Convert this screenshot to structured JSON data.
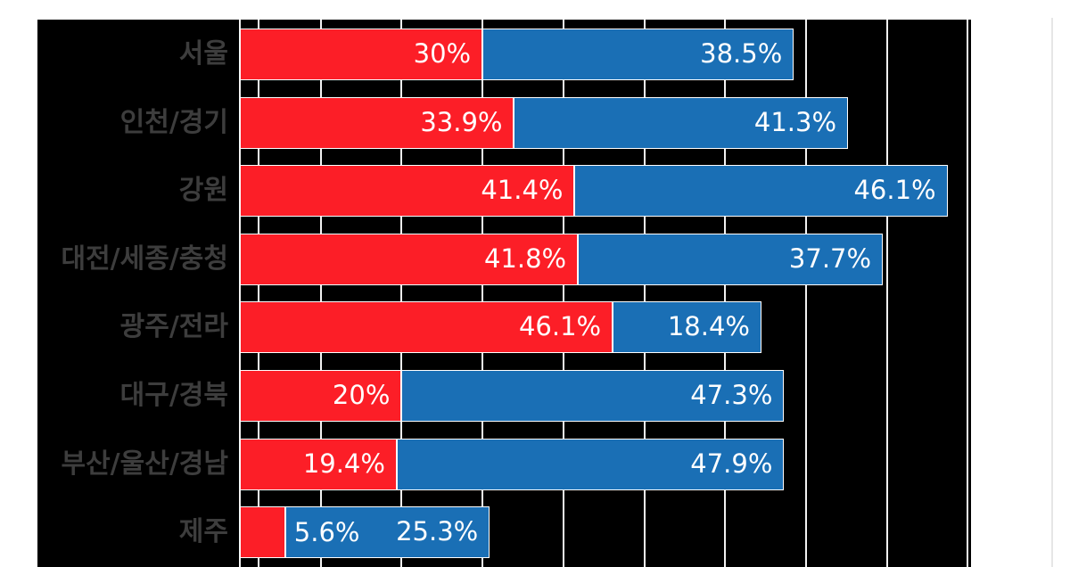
{
  "chart_data": {
    "type": "bar",
    "orientation": "horizontal",
    "stacked": true,
    "title": "",
    "xlabel": "",
    "ylabel": "",
    "legend": "none",
    "grid": true,
    "xlim": [
      0,
      90.4
    ],
    "gridlines_pct": [
      0,
      2.3,
      10,
      20,
      30,
      40,
      50,
      60,
      70,
      80,
      90
    ],
    "categories": [
      "서울",
      "인천/경기",
      "강원",
      "대전/세종/충청",
      "광주/전라",
      "대구/경북",
      "부산/울산/경남",
      "제주"
    ],
    "series": [
      {
        "name": "red-series",
        "color": "#fc1e27",
        "values": [
          30,
          33.9,
          41.4,
          41.8,
          46.1,
          20,
          19.4,
          5.6
        ],
        "labels": [
          "30%",
          "33.9%",
          "41.4%",
          "41.8%",
          "46.1%",
          "20%",
          "19.4%",
          "5.6%"
        ],
        "label_placement": [
          "inside-end",
          "inside-end",
          "inside-end",
          "inside-end",
          "inside-end",
          "inside-end",
          "inside-end",
          "outside-end"
        ]
      },
      {
        "name": "blue-series",
        "color": "#1a6fb5",
        "values": [
          38.5,
          41.3,
          46.1,
          37.7,
          18.4,
          47.3,
          47.9,
          25.3
        ],
        "labels": [
          "38.5%",
          "41.3%",
          "46.1%",
          "37.7%",
          "18.4%",
          "47.3%",
          "47.9%",
          "25.3%"
        ],
        "label_placement": [
          "inside-end",
          "inside-end",
          "inside-end",
          "inside-end",
          "inside-end",
          "inside-end",
          "inside-end",
          "inside-end"
        ]
      }
    ]
  },
  "colors": {
    "page_background": "#ffffff",
    "plot_background": "#000000",
    "category_label": "#3d3d3d",
    "gridline": "#f2f2f2",
    "bar_stroke": "#ffffff",
    "value_label": "#ffffff",
    "right_divider": "#e6e6e6"
  }
}
